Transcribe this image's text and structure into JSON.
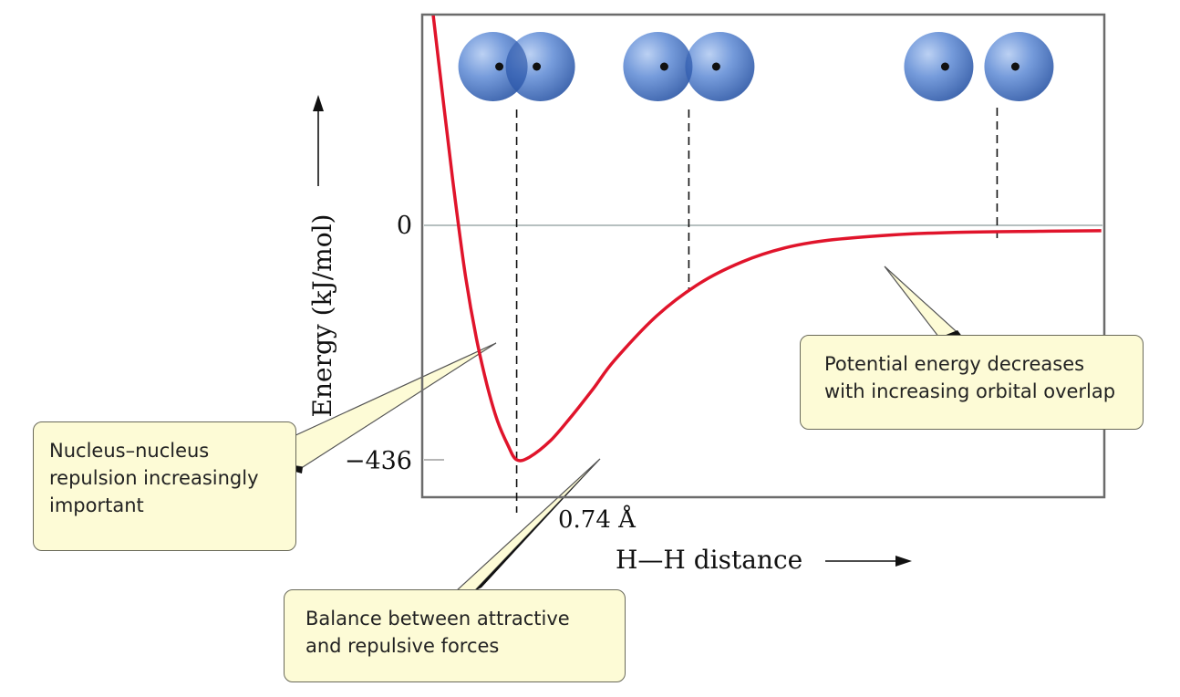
{
  "chart_data": {
    "type": "line",
    "title": "",
    "xlabel": "H—H distance",
    "ylabel": "Energy (kJ/mol)",
    "y_ticks": [
      {
        "value": 0,
        "label": "0"
      },
      {
        "value": -436,
        "label": "−436"
      }
    ],
    "x_ticks": [
      {
        "value": 0.74,
        "label": "0.74 Å"
      }
    ],
    "ylim": [
      -500,
      450
    ],
    "xlim": [
      0.3,
      3.5
    ],
    "grid": false,
    "series": [
      {
        "color": "#e0142b",
        "x": [
          0.33,
          0.4,
          0.45,
          0.5,
          0.55,
          0.6,
          0.65,
          0.7,
          0.74,
          0.8,
          0.9,
          1.0,
          1.1,
          1.2,
          1.4,
          1.6,
          1.8,
          2.0,
          2.2,
          2.5,
          2.8,
          3.2,
          3.49
        ],
        "y": [
          450,
          214,
          50,
          -96,
          -209,
          -296,
          -364,
          -410,
          -436,
          -431,
          -400,
          -354,
          -304,
          -251,
          -168,
          -108,
          -68,
          -42,
          -28,
          -18,
          -13,
          -11,
          -10
        ]
      }
    ],
    "reference_lines": [
      {
        "x": 0.74,
        "style": "dashed"
      },
      {
        "x": 1.55,
        "style": "dashed"
      },
      {
        "x": 3.0,
        "style": "dashed"
      }
    ],
    "annotations": [
      {
        "id": "repulsion",
        "text": [
          "Nucleus–nucleus",
          "repulsion increasingly",
          "important"
        ],
        "points_to": {
          "x": 0.42,
          "y": -200
        }
      },
      {
        "id": "balance",
        "text": [
          "Balance between attractive",
          "and repulsive forces"
        ],
        "points_to": {
          "x": 0.74,
          "y": -436
        }
      },
      {
        "id": "overlap",
        "text": [
          "Potential energy decreases",
          "with increasing orbital overlap"
        ],
        "points_to": {
          "x": 2.0,
          "y": -40
        }
      }
    ],
    "molecules": [
      {
        "at_x": 0.74,
        "overlap": "large"
      },
      {
        "at_x": 1.55,
        "overlap": "small"
      },
      {
        "at_x": 3.0,
        "overlap": "none"
      }
    ]
  },
  "colors": {
    "curve": "#e0142b",
    "callout_fill": "#fdfbd6",
    "atom": "#4f7ccb"
  }
}
